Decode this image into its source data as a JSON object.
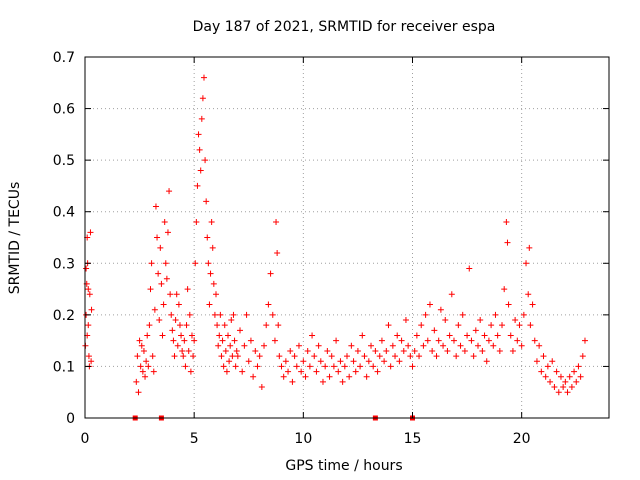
{
  "chart_data": {
    "type": "scatter",
    "title": "Day 187 of 2021, SRMTID for receiver espa",
    "xlabel": "GPS time / hours",
    "ylabel": "SRMTID / TECUs",
    "xlim": [
      0,
      24
    ],
    "ylim": [
      0,
      0.7
    ],
    "x_ticks": [
      0,
      5,
      10,
      15,
      20
    ],
    "x_tick_labels": [
      "0",
      "5",
      "10",
      "15",
      "20"
    ],
    "y_ticks": [
      0,
      0.1,
      0.2,
      0.3,
      0.4,
      0.5,
      0.6,
      0.7
    ],
    "y_tick_labels": [
      "0",
      "0.1",
      "0.2",
      "0.3",
      "0.4",
      "0.5",
      "0.6",
      "0.7"
    ],
    "grid": true,
    "marker": "plus",
    "series_color": "#ff0000",
    "gap_markers": {
      "x": [
        2.3,
        3.5,
        13.3,
        15.0
      ],
      "y": [
        0,
        0,
        0,
        0
      ],
      "marker": "square"
    },
    "series": [
      {
        "name": "SRMTID",
        "x": [
          0.02,
          0.05,
          0.08,
          0.1,
          0.12,
          0.15,
          0.18,
          0.2,
          0.22,
          0.25,
          0.28,
          0.3,
          0.05,
          0.1,
          0.15,
          2.35,
          2.4,
          2.45,
          2.5,
          2.55,
          2.6,
          2.65,
          2.7,
          2.75,
          2.8,
          2.85,
          2.9,
          2.95,
          3.0,
          3.05,
          3.1,
          3.15,
          3.2,
          3.25,
          3.3,
          3.35,
          3.4,
          3.45,
          3.5,
          3.55,
          3.6,
          3.65,
          3.7,
          3.75,
          3.8,
          3.85,
          3.9,
          3.95,
          4.0,
          4.05,
          4.1,
          4.15,
          4.2,
          4.25,
          4.3,
          4.35,
          4.4,
          4.45,
          4.5,
          4.55,
          4.6,
          4.65,
          4.7,
          4.75,
          4.8,
          4.85,
          4.9,
          4.95,
          5.0,
          5.05,
          5.1,
          5.15,
          5.2,
          5.25,
          5.3,
          5.35,
          5.4,
          5.45,
          5.5,
          5.55,
          5.6,
          5.65,
          5.7,
          5.75,
          5.8,
          5.85,
          5.9,
          5.95,
          6.0,
          6.05,
          6.1,
          6.15,
          6.2,
          6.25,
          6.3,
          6.35,
          6.4,
          6.45,
          6.5,
          6.55,
          6.6,
          6.65,
          6.7,
          6.75,
          6.8,
          6.85,
          6.9,
          6.95,
          7.0,
          7.1,
          7.2,
          7.3,
          7.4,
          7.5,
          7.6,
          7.7,
          7.8,
          7.9,
          8.0,
          8.1,
          8.2,
          8.3,
          8.4,
          8.5,
          8.6,
          8.7,
          8.75,
          8.8,
          8.85,
          8.9,
          9.0,
          9.1,
          9.2,
          9.3,
          9.4,
          9.5,
          9.6,
          9.7,
          9.8,
          9.9,
          10.0,
          10.1,
          10.2,
          10.3,
          10.4,
          10.5,
          10.6,
          10.7,
          10.8,
          10.9,
          11.0,
          11.1,
          11.2,
          11.3,
          11.4,
          11.5,
          11.6,
          11.7,
          11.8,
          11.9,
          12.0,
          12.1,
          12.2,
          12.3,
          12.4,
          12.5,
          12.6,
          12.7,
          12.8,
          12.9,
          13.0,
          13.1,
          13.2,
          13.3,
          13.4,
          13.5,
          13.6,
          13.7,
          13.8,
          13.9,
          14.0,
          14.1,
          14.2,
          14.3,
          14.4,
          14.5,
          14.6,
          14.7,
          14.8,
          14.9,
          15.0,
          15.1,
          15.2,
          15.3,
          15.4,
          15.5,
          15.6,
          15.7,
          15.8,
          15.9,
          16.0,
          16.1,
          16.2,
          16.3,
          16.4,
          16.5,
          16.6,
          16.7,
          16.8,
          16.9,
          17.0,
          17.1,
          17.2,
          17.3,
          17.4,
          17.5,
          17.6,
          17.7,
          17.8,
          17.9,
          18.0,
          18.1,
          18.2,
          18.3,
          18.4,
          18.5,
          18.6,
          18.7,
          18.8,
          18.9,
          19.0,
          19.1,
          19.2,
          19.3,
          19.35,
          19.4,
          19.5,
          19.6,
          19.7,
          19.8,
          19.9,
          20.0,
          20.1,
          20.2,
          20.3,
          20.35,
          20.4,
          20.5,
          20.6,
          20.7,
          20.8,
          20.9,
          21.0,
          21.1,
          21.2,
          21.3,
          21.4,
          21.5,
          21.6,
          21.7,
          21.8,
          21.9,
          22.0,
          22.1,
          22.2,
          22.3,
          22.4,
          22.5,
          22.6,
          22.7,
          22.8,
          22.9
        ],
        "y": [
          0.14,
          0.2,
          0.26,
          0.35,
          0.3,
          0.18,
          0.12,
          0.1,
          0.24,
          0.36,
          0.11,
          0.21,
          0.29,
          0.16,
          0.25,
          0.07,
          0.12,
          0.05,
          0.15,
          0.1,
          0.14,
          0.09,
          0.13,
          0.08,
          0.11,
          0.16,
          0.1,
          0.18,
          0.25,
          0.3,
          0.12,
          0.09,
          0.21,
          0.41,
          0.35,
          0.28,
          0.19,
          0.33,
          0.26,
          0.16,
          0.22,
          0.38,
          0.3,
          0.27,
          0.36,
          0.44,
          0.24,
          0.2,
          0.17,
          0.15,
          0.12,
          0.19,
          0.24,
          0.14,
          0.22,
          0.18,
          0.16,
          0.13,
          0.12,
          0.15,
          0.1,
          0.18,
          0.25,
          0.13,
          0.2,
          0.09,
          0.16,
          0.12,
          0.15,
          0.3,
          0.38,
          0.45,
          0.55,
          0.52,
          0.48,
          0.58,
          0.62,
          0.66,
          0.5,
          0.42,
          0.35,
          0.3,
          0.22,
          0.28,
          0.38,
          0.33,
          0.26,
          0.2,
          0.24,
          0.18,
          0.14,
          0.16,
          0.2,
          0.12,
          0.15,
          0.1,
          0.18,
          0.13,
          0.09,
          0.16,
          0.11,
          0.14,
          0.19,
          0.12,
          0.2,
          0.15,
          0.1,
          0.13,
          0.12,
          0.17,
          0.09,
          0.14,
          0.2,
          0.11,
          0.15,
          0.08,
          0.13,
          0.1,
          0.12,
          0.06,
          0.14,
          0.18,
          0.22,
          0.28,
          0.2,
          0.15,
          0.38,
          0.32,
          0.18,
          0.12,
          0.1,
          0.08,
          0.11,
          0.09,
          0.13,
          0.07,
          0.12,
          0.1,
          0.14,
          0.09,
          0.11,
          0.08,
          0.13,
          0.1,
          0.16,
          0.12,
          0.09,
          0.14,
          0.11,
          0.07,
          0.1,
          0.13,
          0.08,
          0.12,
          0.1,
          0.15,
          0.09,
          0.11,
          0.07,
          0.1,
          0.12,
          0.08,
          0.14,
          0.11,
          0.09,
          0.13,
          0.1,
          0.16,
          0.12,
          0.08,
          0.11,
          0.14,
          0.1,
          0.13,
          0.09,
          0.12,
          0.15,
          0.11,
          0.13,
          0.18,
          0.1,
          0.14,
          0.12,
          0.16,
          0.11,
          0.15,
          0.13,
          0.19,
          0.14,
          0.12,
          0.1,
          0.13,
          0.16,
          0.12,
          0.18,
          0.14,
          0.2,
          0.15,
          0.22,
          0.13,
          0.17,
          0.12,
          0.15,
          0.21,
          0.14,
          0.19,
          0.13,
          0.16,
          0.24,
          0.15,
          0.12,
          0.18,
          0.14,
          0.2,
          0.13,
          0.16,
          0.29,
          0.15,
          0.12,
          0.17,
          0.14,
          0.19,
          0.13,
          0.16,
          0.11,
          0.15,
          0.18,
          0.14,
          0.2,
          0.16,
          0.13,
          0.18,
          0.25,
          0.38,
          0.34,
          0.22,
          0.16,
          0.13,
          0.19,
          0.15,
          0.18,
          0.14,
          0.2,
          0.3,
          0.24,
          0.33,
          0.18,
          0.22,
          0.15,
          0.11,
          0.14,
          0.09,
          0.12,
          0.08,
          0.1,
          0.07,
          0.11,
          0.06,
          0.09,
          0.05,
          0.08,
          0.06,
          0.07,
          0.05,
          0.08,
          0.06,
          0.09,
          0.07,
          0.1,
          0.08,
          0.12,
          0.15
        ]
      }
    ]
  }
}
